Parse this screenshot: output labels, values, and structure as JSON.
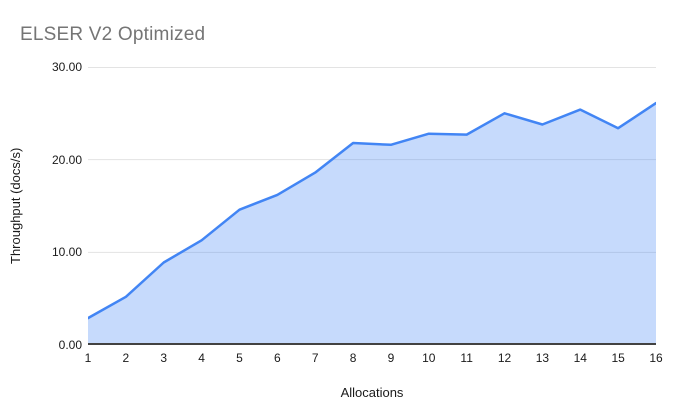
{
  "page": {
    "background": "#ffffff"
  },
  "chart_data": {
    "type": "area",
    "title": "ELSER V2 Optimized",
    "xlabel": "Allocations",
    "ylabel": "Throughput (docs/s)",
    "x": [
      1,
      2,
      3,
      4,
      5,
      6,
      7,
      8,
      9,
      10,
      11,
      12,
      13,
      14,
      15,
      16
    ],
    "series": [
      {
        "name": "Throughput (docs/s)",
        "values": [
          2.9,
          5.2,
          8.9,
          11.3,
          14.6,
          16.2,
          18.6,
          21.8,
          21.6,
          22.8,
          22.7,
          25.0,
          23.8,
          25.4,
          23.4,
          26.1
        ]
      }
    ],
    "ylim": [
      0,
      30
    ],
    "yticks": [
      {
        "value": 0,
        "label": "0.00"
      },
      {
        "value": 10,
        "label": "10.00"
      },
      {
        "value": 20,
        "label": "20.00"
      },
      {
        "value": 30,
        "label": "30.00"
      }
    ],
    "grid": true,
    "legend": "none",
    "colors": {
      "line": "#4285f4",
      "fill": "rgba(66,133,244,0.30)",
      "gridline": "#e3e3e3",
      "axis_line": "#424242",
      "title_text": "#757575",
      "tick_text": "#1a1a1a"
    }
  }
}
